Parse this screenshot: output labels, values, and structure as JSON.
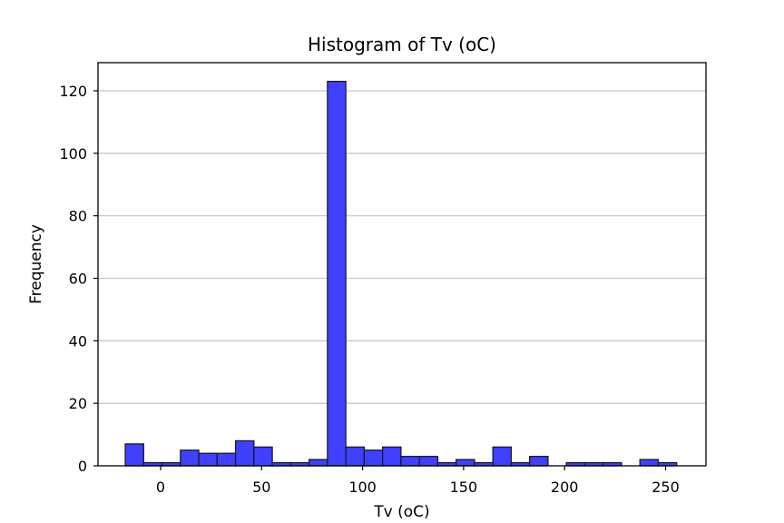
{
  "chart_data": {
    "type": "bar",
    "title": "Histogram of Tv (oC)",
    "xlabel": "Tv (oC)",
    "ylabel": "Frequency",
    "xlim": [
      -31,
      270
    ],
    "ylim": [
      0,
      129
    ],
    "xticks": [
      0,
      50,
      100,
      150,
      200,
      250
    ],
    "yticks": [
      0,
      20,
      40,
      60,
      80,
      100,
      120
    ],
    "grid": "y",
    "bar_color": "#4040ff",
    "edge_color": "#1a1a2e",
    "bin_edges": [
      -17.5,
      -8.4,
      0.7,
      9.8,
      18.9,
      28.0,
      37.1,
      46.2,
      55.3,
      64.4,
      73.5,
      82.6,
      91.7,
      100.8,
      109.9,
      119.0,
      128.1,
      137.2,
      146.3,
      155.4,
      164.5,
      173.6,
      182.7,
      191.8,
      200.9,
      210.0,
      219.1,
      228.2,
      237.3,
      246.4,
      255.5
    ],
    "counts": [
      7,
      1,
      1,
      5,
      4,
      4,
      8,
      6,
      1,
      1,
      2,
      123,
      6,
      5,
      6,
      3,
      3,
      1,
      2,
      1,
      6,
      1,
      3,
      0,
      1,
      1,
      1,
      0,
      2,
      1
    ]
  }
}
